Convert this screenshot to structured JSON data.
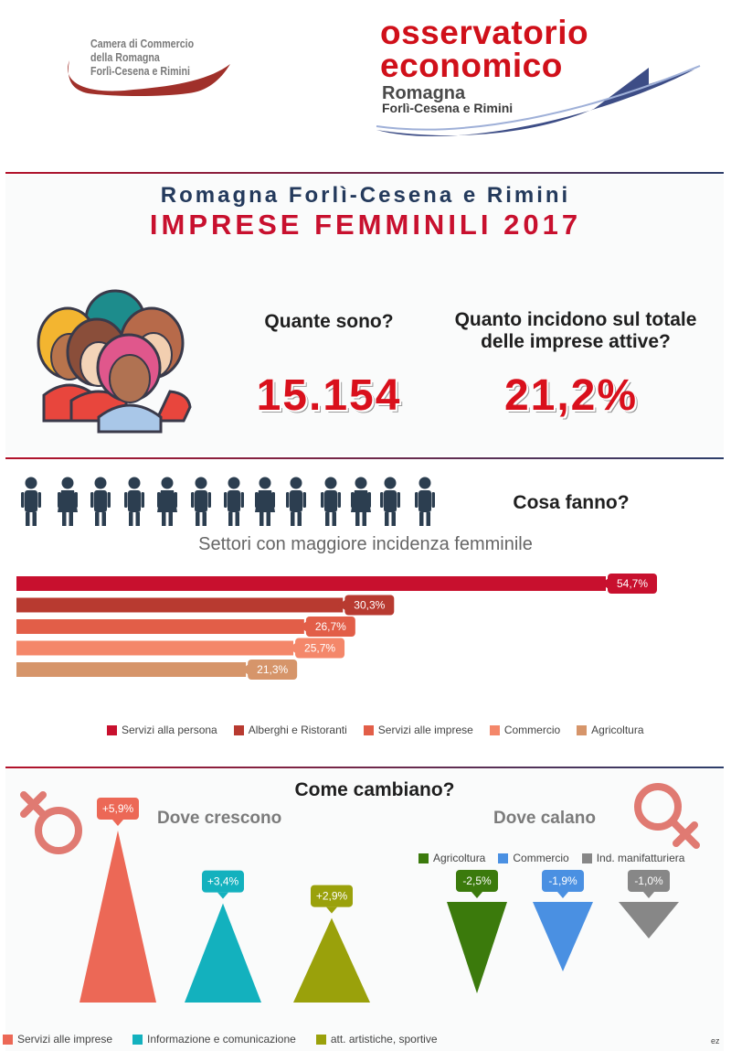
{
  "header": {
    "camera_logo_lines": [
      "Camera di Commercio",
      "della Romagna",
      "Forlì-Cesena e Rimini"
    ],
    "observatory_logo": {
      "line1": "osservatorio",
      "line2": "economico",
      "line3": "Romagna",
      "line4": "Forlì-Cesena e Rimini"
    }
  },
  "titles": {
    "subtitle": "Romagna Forlì-Cesena e Rimini",
    "main": "IMPRESE FEMMINILI 2017"
  },
  "kpis": {
    "count_question": "Quante sono?",
    "count_value": "15.154",
    "share_question": "Quanto incidono sul totale delle imprese attive?",
    "share_value": "21,2%"
  },
  "sectors": {
    "question": "Cosa fanno?",
    "bars_title": "Settori con maggiore incidenza femminile"
  },
  "change": {
    "question": "Come cambiano?",
    "growth_heading": "Dove crescono",
    "decline_heading": "Dove calano"
  },
  "footer": {
    "signature": "ez"
  },
  "colors": {
    "accent_red": "#c8102e",
    "navy": "#243a5c"
  },
  "chart_data": [
    {
      "type": "bar",
      "orientation": "horizontal",
      "title": "Settori con maggiore incidenza femminile",
      "categories": [
        "Servizi alla persona",
        "Alberghi e Ristoranti",
        "Servizi alle imprese",
        "Commercio",
        "Agricoltura"
      ],
      "values": [
        54.7,
        30.3,
        26.7,
        25.7,
        21.3
      ],
      "labels": [
        "54,7%",
        "30,3%",
        "26,7%",
        "25,7%",
        "21,3%"
      ],
      "colors": [
        "#c8102e",
        "#b83a30",
        "#e25e48",
        "#f4876a",
        "#d6956a"
      ],
      "legend": "bottom"
    },
    {
      "type": "bar",
      "style": "triangles-up",
      "heading": "Dove crescono",
      "categories": [
        "Servizi alle imprese",
        "Informazione e comunicazione",
        "att. artistiche, sportive"
      ],
      "values": [
        5.9,
        3.4,
        2.9
      ],
      "labels": [
        "+5,9%",
        "+3,4%",
        "+2,9%"
      ],
      "colors": [
        "#ec6856",
        "#13b1be",
        "#9aa10b"
      ],
      "legend": "bottom"
    },
    {
      "type": "bar",
      "style": "triangles-down",
      "heading": "Dove calano",
      "categories": [
        "Agricoltura",
        "Commercio",
        "Ind. manifatturiera"
      ],
      "values": [
        -2.5,
        -1.9,
        -1.0
      ],
      "labels": [
        "-2,5%",
        "-1,9%",
        "-1,0%"
      ],
      "colors": [
        "#3b7a0c",
        "#4a90e2",
        "#878787"
      ],
      "legend": "top"
    }
  ]
}
